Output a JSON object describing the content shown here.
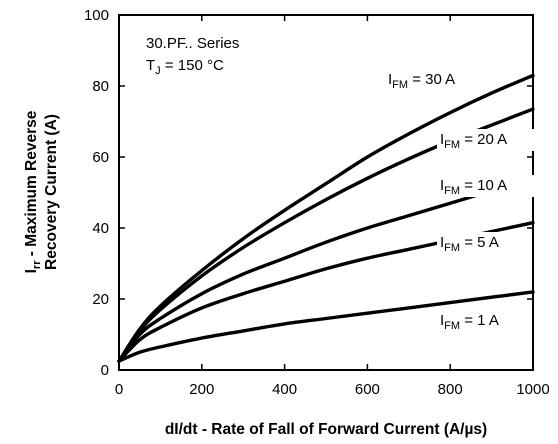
{
  "chart_data": {
    "type": "line",
    "xlabel": "dI/dt - Rate of Fall of Forward Current (A/µs)",
    "ylabel": {
      "line1_main": "I",
      "line1_sub": "rr",
      "line1_rest": " - Maximum Reverse",
      "line2": "Recovery Current (A)"
    },
    "xlim": [
      0,
      1000
    ],
    "ylim": [
      0,
      100
    ],
    "x_ticks": [
      "0",
      "200",
      "400",
      "600",
      "800",
      "1000"
    ],
    "y_ticks": [
      "0",
      "20",
      "40",
      "60",
      "80",
      "100"
    ],
    "grid": false,
    "annotations": {
      "series_text": "30.PF.. Series",
      "temp_main": "T",
      "temp_sub": "J",
      "temp_rest": " = 150 °C"
    },
    "series": [
      {
        "label_main": "I",
        "label_sub": "FM",
        "label_rest": " = 30 A",
        "x": [
          0,
          50,
          100,
          200,
          300,
          400,
          500,
          600,
          700,
          800,
          900,
          1000
        ],
        "y": [
          2.5,
          11.5,
          18,
          28,
          37,
          45,
          52.5,
          60,
          66.5,
          72.5,
          78,
          83
        ]
      },
      {
        "label_main": "I",
        "label_sub": "FM",
        "label_rest": " = 20 A",
        "x": [
          0,
          50,
          100,
          200,
          300,
          400,
          500,
          600,
          700,
          800,
          900,
          1000
        ],
        "y": [
          2.5,
          11,
          17,
          26.5,
          34.5,
          41.5,
          48,
          54,
          59.5,
          64.5,
          69,
          73.5
        ]
      },
      {
        "label_main": "I",
        "label_sub": "FM",
        "label_rest": " = 10 A",
        "x": [
          0,
          50,
          100,
          200,
          300,
          400,
          500,
          600,
          700,
          800,
          900,
          1000
        ],
        "y": [
          2.5,
          10,
          14.5,
          21.5,
          27,
          31.5,
          36,
          40,
          43.5,
          47,
          50.5,
          54
        ]
      },
      {
        "label_main": "I",
        "label_sub": "FM",
        "label_rest": " = 5 A",
        "x": [
          0,
          50,
          100,
          200,
          300,
          400,
          500,
          600,
          700,
          800,
          900,
          1000
        ],
        "y": [
          2.5,
          8.5,
          12,
          17.5,
          21.5,
          25,
          28.5,
          31.5,
          34,
          36.5,
          39,
          41.5
        ]
      },
      {
        "label_main": "I",
        "label_sub": "FM",
        "label_rest": " = 1 A",
        "x": [
          0,
          50,
          100,
          200,
          300,
          400,
          500,
          600,
          700,
          800,
          900,
          1000
        ],
        "y": [
          2.5,
          5,
          6.5,
          9,
          11,
          13,
          14.5,
          16,
          17.5,
          19,
          20.5,
          22
        ]
      }
    ]
  }
}
